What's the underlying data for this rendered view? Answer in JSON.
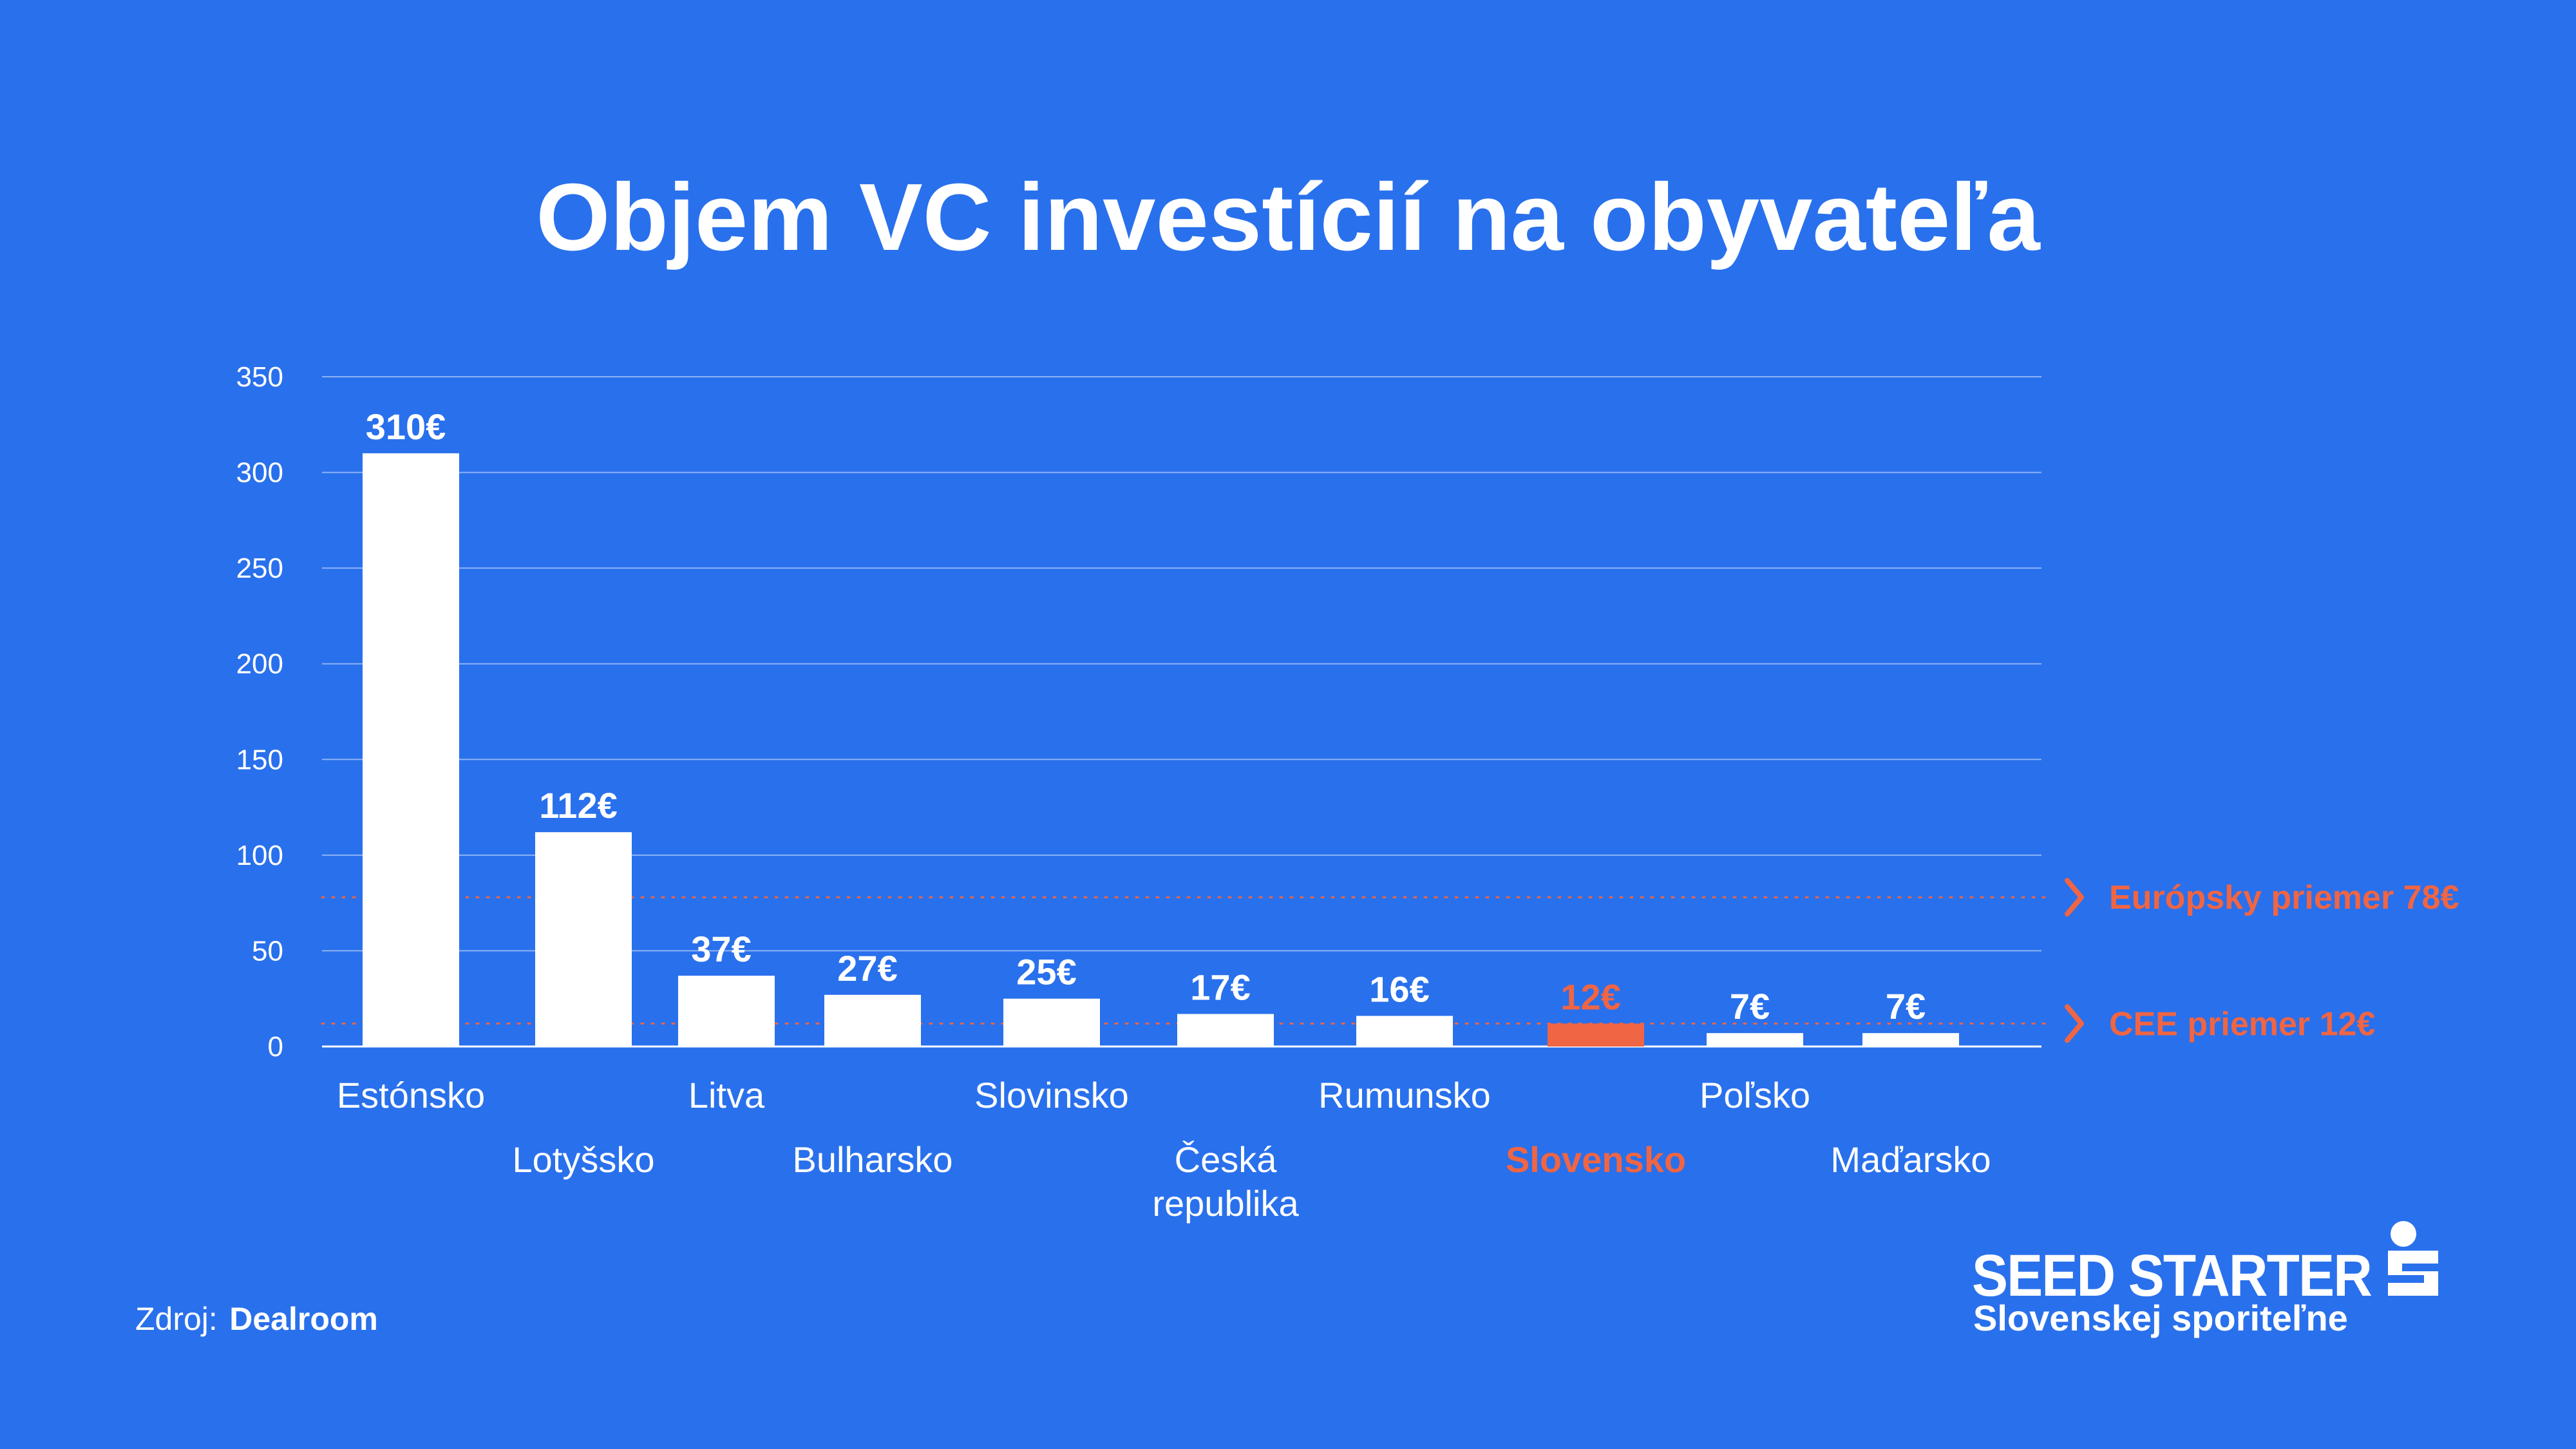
{
  "colors": {
    "background": "#2970EC",
    "bar": "#FFFFFF",
    "highlight": "#F06543",
    "grid": "#8DB3F5",
    "text": "#FFFFFF"
  },
  "source": {
    "prefix": "Zdroj:",
    "name": "Dealroom"
  },
  "brand": {
    "line1": "SEED STARTER",
    "line2": "Slovenskej sporiteľne",
    "logo_icon": "sporitelna-s-logo-icon"
  },
  "chart_data": {
    "type": "bar",
    "title": "Objem VC investícií na obyvateľa",
    "xlabel": "",
    "ylabel": "",
    "ylim": [
      0,
      350
    ],
    "yticks": [
      0,
      50,
      100,
      150,
      200,
      250,
      300,
      350
    ],
    "grid": true,
    "categories": [
      "Estónsko",
      "Lotyšsko",
      "Litva",
      "Bulharsko",
      "Slovinsko",
      "Česká republika",
      "Rumunsko",
      "Slovensko",
      "Poľsko",
      "Maďarsko"
    ],
    "values": [
      310,
      112,
      37,
      27,
      25,
      17,
      16,
      12,
      7,
      7
    ],
    "data_labels": [
      "310€",
      "112€",
      "37€",
      "27€",
      "25€",
      "17€",
      "16€",
      "12€",
      "7€",
      "7€"
    ],
    "highlight_index": 7,
    "reference_lines": [
      {
        "value": 78,
        "label": "Európsky priemer 78€"
      },
      {
        "value": 12,
        "label": "CEE priemer 12€"
      }
    ]
  }
}
